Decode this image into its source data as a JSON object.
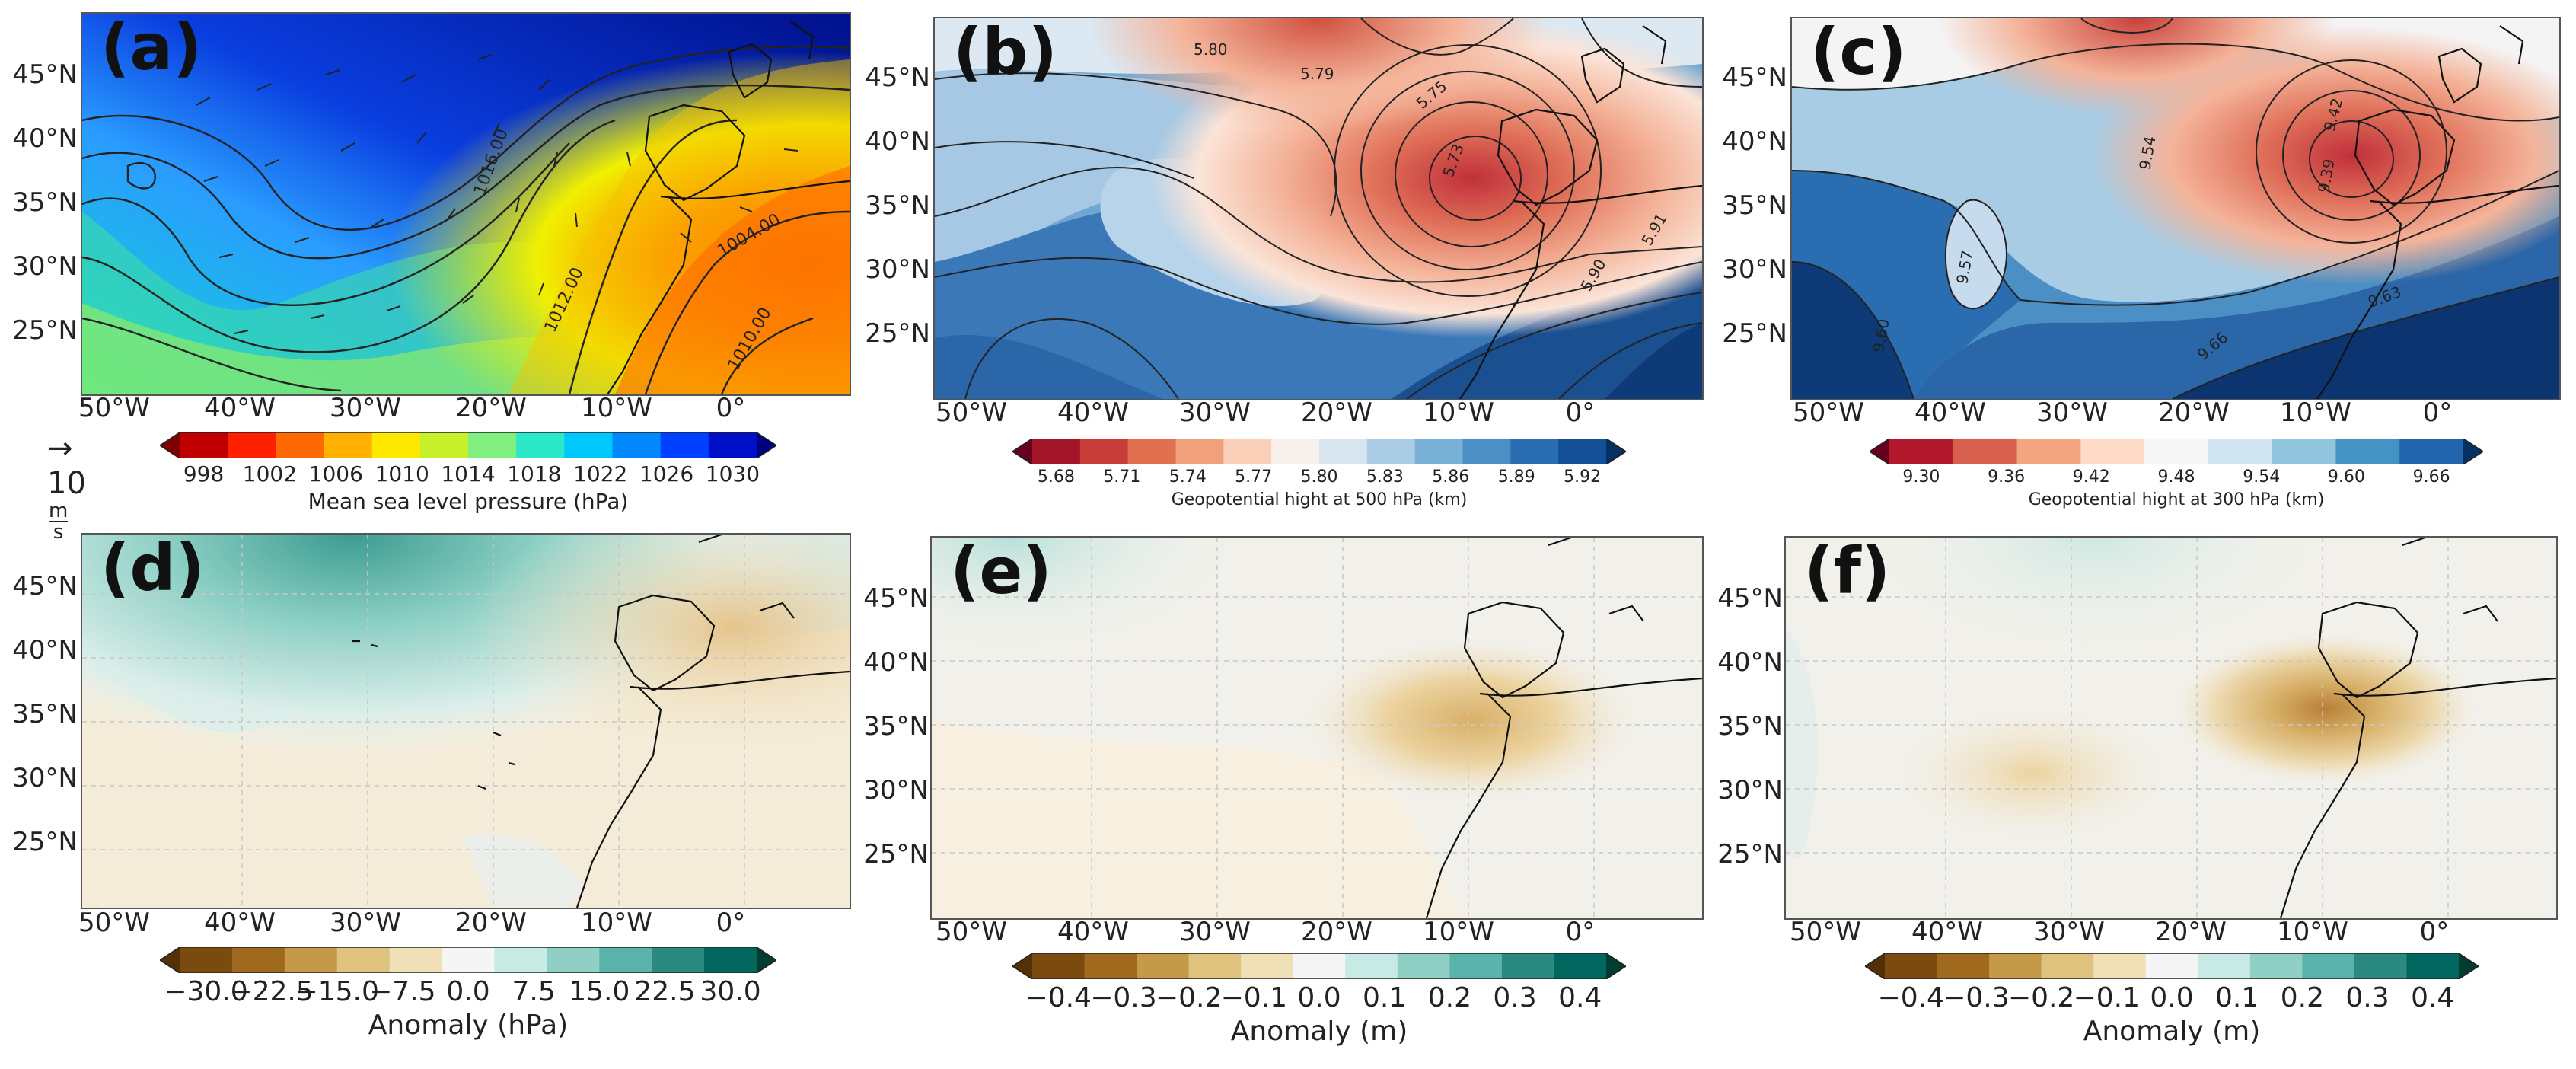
{
  "panels": [
    {
      "id": "a",
      "label": "(a)",
      "lat_ticks": [
        "45°N",
        "40°N",
        "35°N",
        "30°N",
        "25°N"
      ],
      "lon_ticks": [
        "50°W",
        "40°W",
        "30°W",
        "20°W",
        "10°W",
        "0°"
      ],
      "contour_labels": [
        "1016.00",
        "1012.00",
        "1004.00",
        "1010.00"
      ],
      "colorbar": {
        "ticks": [
          "998",
          "1002",
          "1006",
          "1010",
          "1014",
          "1018",
          "1022",
          "1026",
          "1030"
        ],
        "label": "Mean sea level pressure (hPa)",
        "colors": [
          "#7f0000",
          "#c00000",
          "#ff2000",
          "#ff6a00",
          "#ffb000",
          "#ffe800",
          "#c8f02a",
          "#7ff07f",
          "#2ae8c8",
          "#00c8ff",
          "#0088ff",
          "#0040ff",
          "#0010c8",
          "#00007f"
        ]
      },
      "wind_key": {
        "arrow": "→",
        "value": "10",
        "unit_top": "m",
        "unit_bottom": "s"
      }
    },
    {
      "id": "b",
      "label": "(b)",
      "lat_ticks": [
        "45°N",
        "40°N",
        "35°N",
        "30°N",
        "25°N"
      ],
      "lon_ticks": [
        "50°W",
        "40°W",
        "30°W",
        "20°W",
        "10°W",
        "0°"
      ],
      "contour_labels": [
        "5.80",
        "5.79",
        "5.75",
        "5.73",
        "5.90",
        "5.91"
      ],
      "colorbar": {
        "ticks": [
          "5.68",
          "5.71",
          "5.74",
          "5.77",
          "5.80",
          "5.83",
          "5.86",
          "5.89",
          "5.92"
        ],
        "label": "Geopotential hight at 500 hPa (km)",
        "colors": [
          "#67001f",
          "#a3162a",
          "#c83c38",
          "#e0704f",
          "#f2a07c",
          "#fbd0b8",
          "#f7f0ec",
          "#d8e6f0",
          "#aacce4",
          "#78b0d6",
          "#4b8fc4",
          "#2a6db0",
          "#134f96",
          "#053061"
        ]
      }
    },
    {
      "id": "c",
      "label": "(c)",
      "lat_ticks": [
        "45°N",
        "40°N",
        "35°N",
        "30°N",
        "25°N"
      ],
      "lon_ticks": [
        "50°W",
        "40°W",
        "30°W",
        "20°W",
        "10°W",
        "0°"
      ],
      "contour_labels": [
        "9.54",
        "9.57",
        "9.42",
        "9.39",
        "9.63",
        "9.66",
        "9.60"
      ],
      "colorbar": {
        "ticks": [
          "9.30",
          "9.36",
          "9.42",
          "9.48",
          "9.54",
          "9.60",
          "9.66"
        ],
        "label": "Geopotential hight at 300 hPa (km)",
        "colors": [
          "#67001f",
          "#b2182b",
          "#d6604d",
          "#f4a582",
          "#fddbc7",
          "#f7f7f7",
          "#d1e5f0",
          "#92c5de",
          "#4393c3",
          "#2166ac",
          "#053061"
        ]
      }
    },
    {
      "id": "d",
      "label": "(d)",
      "lat_ticks": [
        "45°N",
        "40°N",
        "35°N",
        "30°N",
        "25°N"
      ],
      "lon_ticks": [
        "50°W",
        "40°W",
        "30°W",
        "20°W",
        "10°W",
        "0°"
      ],
      "colorbar": {
        "ticks": [
          "−30.0",
          "−22.5",
          "−15.0",
          "−7.5",
          "0.0",
          "7.5",
          "15.0",
          "22.5",
          "30.0"
        ],
        "label": "Anomaly (hPa)",
        "colors": [
          "#543005",
          "#7a4a0e",
          "#a06a1e",
          "#c49a48",
          "#dfc27d",
          "#f0e0b8",
          "#f5f5f5",
          "#c7eae5",
          "#90d0c4",
          "#5ab4ac",
          "#2a8a80",
          "#01665e",
          "#003c30"
        ]
      }
    },
    {
      "id": "e",
      "label": "(e)",
      "lat_ticks": [
        "45°N",
        "40°N",
        "35°N",
        "30°N",
        "25°N"
      ],
      "lon_ticks": [
        "50°W",
        "40°W",
        "30°W",
        "20°W",
        "10°W",
        "0°"
      ],
      "colorbar": {
        "ticks": [
          "−0.4",
          "−0.3",
          "−0.2",
          "−0.1",
          "0.0",
          "0.1",
          "0.2",
          "0.3",
          "0.4"
        ],
        "label": "Anomaly (m)",
        "colors": [
          "#543005",
          "#7a4a0e",
          "#a06a1e",
          "#c49a48",
          "#dfc27d",
          "#f0e0b8",
          "#f5f5f5",
          "#c7eae5",
          "#90d0c4",
          "#5ab4ac",
          "#2a8a80",
          "#01665e",
          "#003c30"
        ]
      }
    },
    {
      "id": "f",
      "label": "(f)",
      "lat_ticks": [
        "45°N",
        "40°N",
        "35°N",
        "30°N",
        "25°N"
      ],
      "lon_ticks": [
        "50°W",
        "40°W",
        "30°W",
        "20°W",
        "10°W",
        "0°"
      ],
      "colorbar": {
        "ticks": [
          "−0.4",
          "−0.3",
          "−0.2",
          "−0.1",
          "0.0",
          "0.1",
          "0.2",
          "0.3",
          "0.4"
        ],
        "label": "Anomaly (m)",
        "colors": [
          "#543005",
          "#7a4a0e",
          "#a06a1e",
          "#c49a48",
          "#dfc27d",
          "#f0e0b8",
          "#f5f5f5",
          "#c7eae5",
          "#90d0c4",
          "#5ab4ac",
          "#2a8a80",
          "#01665e",
          "#003c30"
        ]
      }
    }
  ]
}
